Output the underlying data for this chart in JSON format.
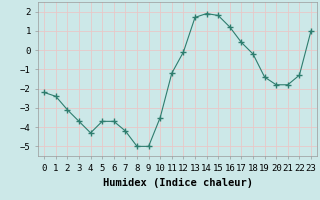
{
  "x": [
    0,
    1,
    2,
    3,
    4,
    5,
    6,
    7,
    8,
    9,
    10,
    11,
    12,
    13,
    14,
    15,
    16,
    17,
    18,
    19,
    20,
    21,
    22,
    23
  ],
  "y": [
    -2.2,
    -2.4,
    -3.1,
    -3.7,
    -4.3,
    -3.7,
    -3.7,
    -4.2,
    -5.0,
    -5.0,
    -3.5,
    -1.2,
    -0.1,
    1.7,
    1.9,
    1.8,
    1.2,
    0.4,
    -0.2,
    -1.4,
    -1.8,
    -1.8,
    -1.3,
    1.0
  ],
  "line_color": "#2e7d6e",
  "marker": "+",
  "marker_size": 4,
  "xlabel": "Humidex (Indice chaleur)",
  "xlim": [
    -0.5,
    23.5
  ],
  "ylim": [
    -5.5,
    2.5
  ],
  "yticks": [
    -5,
    -4,
    -3,
    -2,
    -1,
    0,
    1,
    2
  ],
  "xticks": [
    0,
    1,
    2,
    3,
    4,
    5,
    6,
    7,
    8,
    9,
    10,
    11,
    12,
    13,
    14,
    15,
    16,
    17,
    18,
    19,
    20,
    21,
    22,
    23
  ],
  "xtick_labels": [
    "0",
    "1",
    "2",
    "3",
    "4",
    "5",
    "6",
    "7",
    "8",
    "9",
    "10",
    "11",
    "12",
    "13",
    "14",
    "15",
    "16",
    "17",
    "18",
    "19",
    "20",
    "21",
    "22",
    "23"
  ],
  "background_color": "#cce8e8",
  "grid_color": "#e8c8c8",
  "label_fontsize": 7.5,
  "tick_fontsize": 6.5
}
